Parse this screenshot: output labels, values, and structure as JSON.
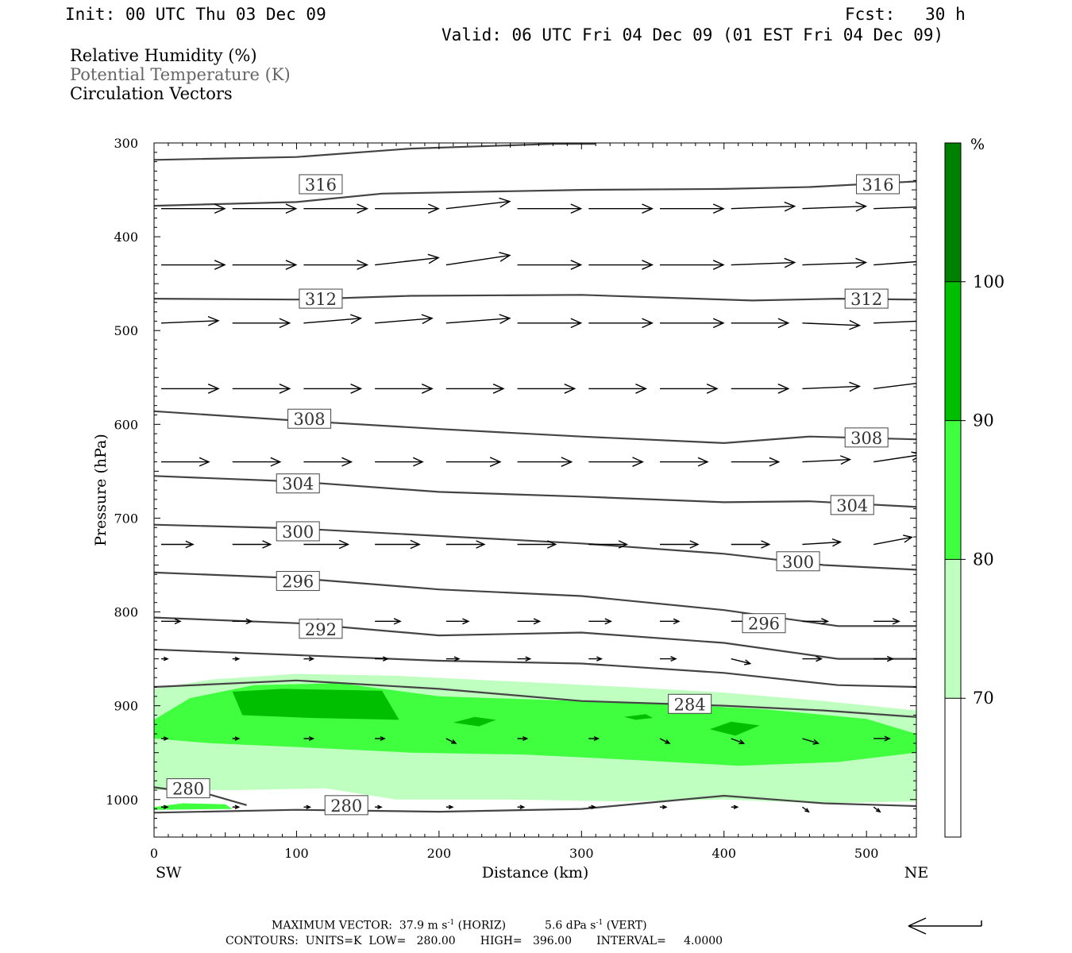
{
  "header": {
    "init": "Init: 00 UTC Thu 03 Dec 09",
    "fcst": "Fcst:   30 h",
    "valid": "Valid: 06 UTC Fri 04 Dec 09 (01 EST Fri 04 Dec 09)"
  },
  "fields": {
    "rh": "Relative Humidity (%)",
    "theta": "Potential Temperature (K)",
    "vectors": "Circulation Vectors"
  },
  "footer": {
    "max_vector_label": "MAXIMUM VECTOR:",
    "horiz_value": "37.9 m s",
    "horiz_exp": "-1",
    "horiz_tag": "(HORIZ)",
    "vert_value": "5.6 dPa s",
    "vert_exp": "-1",
    "vert_tag": "(VERT)",
    "contours": "CONTOURS:  UNITS=K  LOW=   280.00       HIGH=   396.00       INTERVAL=     4.0000"
  },
  "colors": {
    "rh70": "#bfffbf",
    "rh80": "#3fff3f",
    "rh90": "#00bf00",
    "rh100": "#008000",
    "contour": "#444444"
  },
  "chart_data": {
    "type": "cross-section",
    "xlabel": "Distance (km)",
    "ylabel": "Pressure (hPa)",
    "xlim": [
      0,
      535
    ],
    "ylim": [
      1040,
      300
    ],
    "x_ticks": [
      0,
      100,
      200,
      300,
      400,
      500
    ],
    "y_ticks": [
      300,
      400,
      500,
      600,
      700,
      800,
      900,
      1000
    ],
    "x_end_labels": {
      "left": "SW",
      "right": "NE"
    },
    "colorbar": {
      "unit": "%",
      "levels": [
        70,
        80,
        90,
        100
      ],
      "labels": [
        "70",
        "80",
        "90",
        "100"
      ],
      "colors": [
        "#ffffff",
        "#bfffbf",
        "#3fff3f",
        "#00bf00",
        "#008000"
      ]
    },
    "rh_regions": [
      {
        "level": 70,
        "points": [
          [
            0,
            882
          ],
          [
            40,
            872
          ],
          [
            100,
            866
          ],
          [
            170,
            868
          ],
          [
            250,
            874
          ],
          [
            330,
            880
          ],
          [
            400,
            886
          ],
          [
            470,
            895
          ],
          [
            535,
            905
          ],
          [
            535,
            1002
          ],
          [
            470,
            1004
          ],
          [
            400,
            1000
          ],
          [
            330,
            1002
          ],
          [
            250,
            1000
          ],
          [
            170,
            1000
          ],
          [
            120,
            988
          ],
          [
            60,
            990
          ],
          [
            0,
            990
          ]
        ]
      },
      {
        "level": 80,
        "points": [
          [
            0,
            915
          ],
          [
            25,
            892
          ],
          [
            70,
            878
          ],
          [
            130,
            876
          ],
          [
            200,
            890
          ],
          [
            280,
            894
          ],
          [
            360,
            898
          ],
          [
            430,
            904
          ],
          [
            500,
            914
          ],
          [
            535,
            930
          ],
          [
            535,
            950
          ],
          [
            480,
            960
          ],
          [
            410,
            964
          ],
          [
            340,
            958
          ],
          [
            260,
            952
          ],
          [
            180,
            950
          ],
          [
            100,
            944
          ],
          [
            40,
            940
          ],
          [
            0,
            935
          ]
        ]
      },
      {
        "level": 90,
        "points": [
          [
            55,
            885
          ],
          [
            90,
            882
          ],
          [
            160,
            884
          ],
          [
            172,
            915
          ],
          [
            110,
            913
          ],
          [
            62,
            910
          ]
        ]
      },
      {
        "level": 90,
        "points": [
          [
            210,
            918
          ],
          [
            225,
            912
          ],
          [
            240,
            915
          ],
          [
            228,
            922
          ]
        ]
      },
      {
        "level": 90,
        "points": [
          [
            330,
            912
          ],
          [
            345,
            909
          ],
          [
            350,
            913
          ],
          [
            338,
            915
          ]
        ]
      },
      {
        "level": 90,
        "points": [
          [
            390,
            925
          ],
          [
            405,
            917
          ],
          [
            425,
            921
          ],
          [
            408,
            932
          ]
        ]
      },
      {
        "level": 80,
        "points": [
          [
            0,
            1008
          ],
          [
            20,
            1004
          ],
          [
            50,
            1005
          ],
          [
            55,
            1010
          ],
          [
            0,
            1011
          ]
        ]
      }
    ],
    "isentropes": [
      {
        "value": 316,
        "points": [
          [
            0,
            318
          ],
          [
            100,
            315
          ],
          [
            180,
            306
          ],
          [
            280,
            301
          ],
          [
            310,
            301
          ]
        ]
      },
      {
        "value": 316,
        "label_at": [
          [
            117,
            344
          ],
          [
            508,
            344
          ]
        ],
        "points": [
          [
            0,
            367
          ],
          [
            100,
            363
          ],
          [
            160,
            354
          ],
          [
            300,
            350
          ],
          [
            400,
            349
          ],
          [
            460,
            347
          ],
          [
            535,
            341
          ]
        ]
      },
      {
        "value": 312,
        "label_at": [
          [
            117,
            466
          ],
          [
            500,
            466
          ]
        ],
        "points": [
          [
            0,
            466
          ],
          [
            100,
            467
          ],
          [
            180,
            463
          ],
          [
            300,
            462
          ],
          [
            360,
            465
          ],
          [
            420,
            468
          ],
          [
            480,
            466
          ],
          [
            535,
            467
          ]
        ]
      },
      {
        "value": 308,
        "label_at": [
          [
            109,
            594
          ],
          [
            500,
            614
          ]
        ],
        "points": [
          [
            0,
            586
          ],
          [
            100,
            596
          ],
          [
            200,
            605
          ],
          [
            300,
            613
          ],
          [
            400,
            620
          ],
          [
            460,
            613
          ],
          [
            535,
            616
          ]
        ]
      },
      {
        "value": 304,
        "label_at": [
          [
            101,
            663
          ],
          [
            490,
            686
          ]
        ],
        "points": [
          [
            0,
            655
          ],
          [
            100,
            661
          ],
          [
            200,
            672
          ],
          [
            300,
            677
          ],
          [
            400,
            683
          ],
          [
            460,
            682
          ],
          [
            535,
            688
          ]
        ]
      },
      {
        "value": 300,
        "label_at": [
          [
            101,
            714
          ],
          [
            452,
            746
          ]
        ],
        "points": [
          [
            0,
            707
          ],
          [
            100,
            711
          ],
          [
            200,
            719
          ],
          [
            300,
            727
          ],
          [
            400,
            738
          ],
          [
            470,
            750
          ],
          [
            535,
            755
          ]
        ]
      },
      {
        "value": 296,
        "label_at": [
          [
            101,
            767
          ],
          [
            428,
            812
          ]
        ],
        "points": [
          [
            0,
            758
          ],
          [
            100,
            764
          ],
          [
            200,
            776
          ],
          [
            300,
            783
          ],
          [
            400,
            798
          ],
          [
            480,
            815
          ],
          [
            535,
            815
          ]
        ]
      },
      {
        "value": 292,
        "label_at": [
          [
            117,
            818
          ]
        ],
        "points": [
          [
            0,
            806
          ],
          [
            100,
            812
          ],
          [
            200,
            825
          ],
          [
            300,
            822
          ],
          [
            400,
            833
          ],
          [
            480,
            850
          ],
          [
            535,
            850
          ]
        ]
      },
      {
        "value": 288,
        "points": [
          [
            0,
            840
          ],
          [
            100,
            846
          ],
          [
            200,
            852
          ],
          [
            300,
            855
          ],
          [
            400,
            865
          ],
          [
            480,
            878
          ],
          [
            535,
            880
          ]
        ]
      },
      {
        "value": 284,
        "label_at": [
          [
            376,
            898
          ]
        ],
        "points": [
          [
            0,
            880
          ],
          [
            100,
            873
          ],
          [
            200,
            882
          ],
          [
            300,
            895
          ],
          [
            400,
            900
          ],
          [
            470,
            905
          ],
          [
            535,
            912
          ]
        ]
      },
      {
        "value": 280,
        "label_at": [
          [
            24,
            988
          ]
        ],
        "points": [
          [
            0,
            987
          ],
          [
            40,
            995
          ],
          [
            65,
            1006
          ]
        ]
      },
      {
        "value": 280,
        "label_at": [
          [
            135,
            1006
          ]
        ],
        "points": [
          [
            0,
            1014
          ],
          [
            100,
            1011
          ],
          [
            200,
            1013
          ],
          [
            300,
            1010
          ],
          [
            400,
            996
          ],
          [
            470,
            1004
          ],
          [
            535,
            1007
          ]
        ]
      }
    ],
    "vectors": {
      "x": [
        5,
        55,
        105,
        155,
        205,
        255,
        305,
        355,
        405,
        455,
        505
      ],
      "rows": [
        {
          "p": 370,
          "u": [
            1.0,
            1.0,
            1.0,
            1.0,
            1.0,
            1.0,
            1.0,
            1.0,
            1.0,
            1.0,
            1.0
          ],
          "w": [
            0,
            0,
            0,
            0,
            -1.5,
            0,
            0,
            0,
            -0.5,
            -0.5,
            -0.5
          ]
        },
        {
          "p": 430,
          "u": [
            1.0,
            1.0,
            1.0,
            1.0,
            1.0,
            1.0,
            1.0,
            1.0,
            1.0,
            1.0,
            1.0
          ],
          "w": [
            0,
            0,
            0,
            -1.5,
            -2,
            0,
            0,
            0,
            -0.5,
            -0.5,
            -1
          ]
        },
        {
          "p": 492,
          "u": [
            0.9,
            0.9,
            0.9,
            0.9,
            1.0,
            1.0,
            1.0,
            1.0,
            0.9,
            0.9,
            0.9
          ],
          "w": [
            -0.5,
            0,
            -1,
            -1,
            -1,
            0,
            0,
            0,
            0,
            0.5,
            -0.5
          ]
        },
        {
          "p": 562,
          "u": [
            0.9,
            0.9,
            0.9,
            0.9,
            0.9,
            0.9,
            0.9,
            0.9,
            0.9,
            0.9,
            0.9
          ],
          "w": [
            0,
            0,
            0,
            0,
            0,
            0,
            0,
            0,
            0,
            -0.5,
            -1.5
          ]
        },
        {
          "p": 640,
          "u": [
            0.75,
            0.75,
            0.75,
            0.75,
            0.85,
            0.85,
            0.85,
            0.75,
            0.75,
            0.75,
            0.75
          ],
          "w": [
            0,
            0,
            0,
            0,
            0,
            0,
            0,
            0,
            0,
            -0.5,
            -1.5
          ]
        },
        {
          "p": 728,
          "u": [
            0.5,
            0.6,
            0.7,
            0.7,
            0.6,
            0.6,
            0.6,
            0.6,
            0.6,
            0.6,
            0.6
          ],
          "w": [
            0,
            0,
            0,
            0,
            0,
            0,
            0,
            0,
            0,
            -0.5,
            -1.5
          ]
        },
        {
          "p": 810,
          "u": [
            0.3,
            0.3,
            0.3,
            0.4,
            0.35,
            0.35,
            0.35,
            0.3,
            0.3,
            0.4,
            0.4
          ],
          "w": [
            0,
            0,
            0,
            0,
            0,
            0,
            0,
            0,
            0,
            0,
            0
          ]
        },
        {
          "p": 850,
          "u": [
            0.1,
            0.1,
            0.15,
            0.2,
            0.2,
            0.2,
            0.2,
            0.25,
            0.3,
            0.3,
            0.3
          ],
          "w": [
            0,
            0,
            0,
            0,
            0,
            0,
            0,
            0,
            1,
            0,
            0
          ]
        },
        {
          "p": 935,
          "u": [
            0.1,
            0.1,
            0.15,
            0.15,
            0.15,
            0.15,
            0.15,
            0.15,
            0.2,
            0.25,
            0.25
          ],
          "w": [
            0,
            0,
            0,
            0,
            1,
            0,
            0,
            1,
            1,
            1,
            0
          ]
        },
        {
          "p": 1008,
          "u": [
            0.1,
            0.1,
            0.1,
            0.1,
            0.1,
            0.1,
            0.1,
            0.1,
            0.1,
            0.1,
            0.1
          ],
          "w": [
            0,
            0,
            0,
            0,
            0,
            0,
            0,
            0,
            0,
            1,
            1
          ]
        }
      ]
    }
  }
}
